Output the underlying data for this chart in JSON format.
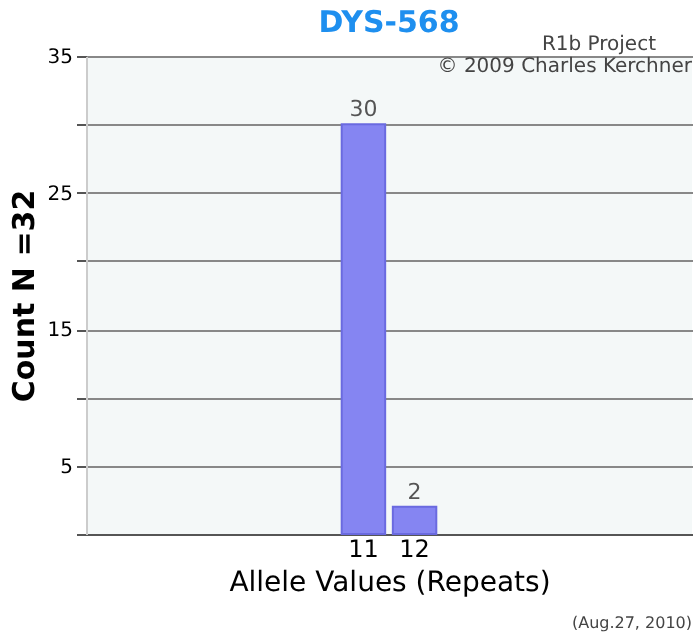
{
  "chart_data": {
    "type": "bar",
    "title": "DYS-568",
    "xlabel": "Allele Values (Repeats)",
    "ylabel": "Count N =32",
    "categories": [
      null,
      null,
      null,
      null,
      null,
      "11",
      "12",
      null,
      null,
      null,
      null,
      null
    ],
    "values": [
      null,
      null,
      null,
      null,
      null,
      30,
      2,
      null,
      null,
      null,
      null,
      null
    ],
    "color": "#8585f2",
    "ylim": [
      0,
      35
    ],
    "yticks": [
      {
        "value": 0,
        "label": null
      },
      5,
      {
        "value": 10,
        "label": null
      },
      15,
      {
        "value": 20,
        "label": null
      },
      25,
      {
        "value": 30,
        "label": null
      },
      35
    ],
    "grid": "y",
    "data_labels": true,
    "annotations": [
      "R1b Project",
      "© 2009 Charles Kerchner",
      "(Aug.27, 2010)"
    ]
  }
}
